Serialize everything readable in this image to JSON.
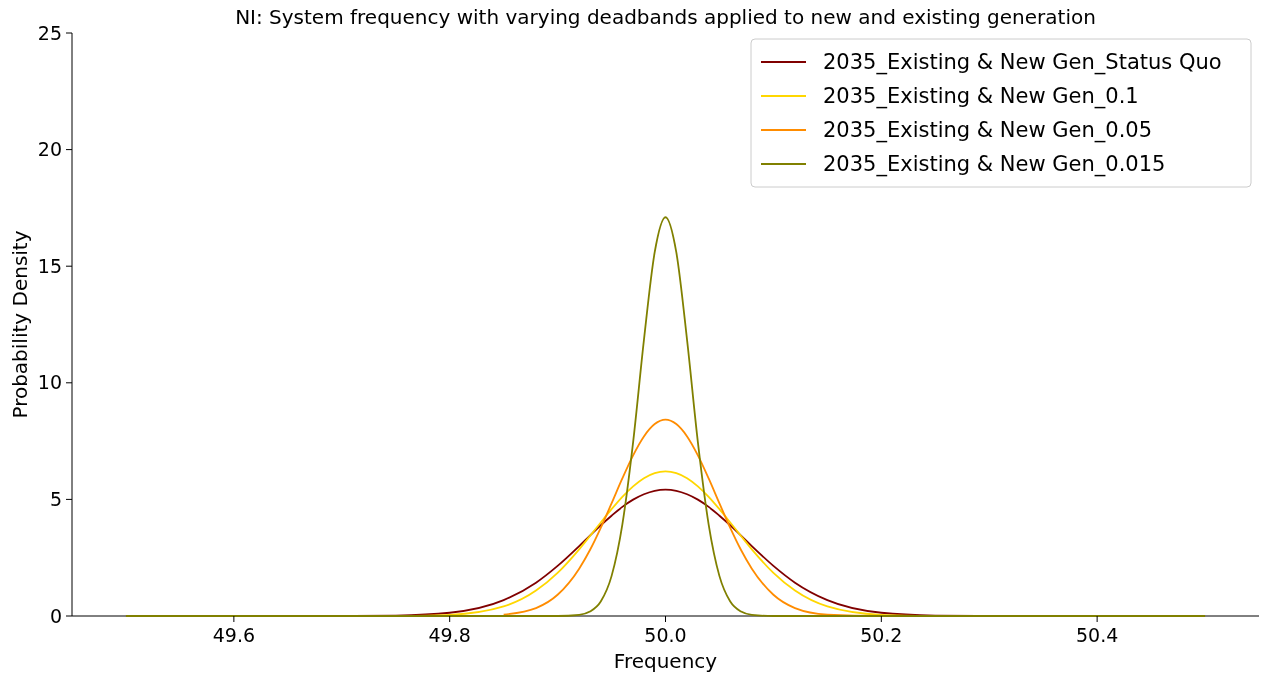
{
  "chart_data": {
    "type": "line",
    "title": "NI: System frequency with varying deadbands applied to new and existing generation",
    "xlabel": "Frequency",
    "ylabel": "Probability Density",
    "x": [
      49.5,
      49.7,
      49.75,
      49.8,
      49.85,
      49.88,
      49.9,
      49.92,
      49.93,
      49.94,
      49.95,
      49.96,
      49.97,
      49.98,
      49.99,
      50.0,
      50.01,
      50.02,
      50.03,
      50.04,
      50.05,
      50.06,
      50.07,
      50.08,
      50.1,
      50.12,
      50.15,
      50.2,
      50.25,
      50.3,
      50.5
    ],
    "series": [
      {
        "name": "2035_Existing & New Gen_Status Quo",
        "color": "#800000",
        "values": [
          0,
          0,
          0.02,
          0.14,
          0.68,
          1.43,
          2.15,
          3.0,
          3.45,
          3.89,
          4.3,
          4.68,
          4.99,
          5.22,
          5.37,
          5.42,
          5.37,
          5.22,
          4.99,
          4.68,
          4.3,
          3.89,
          3.45,
          3.0,
          2.15,
          1.43,
          0.68,
          0.14,
          0.02,
          0,
          0
        ]
      },
      {
        "name": "2035_Existing & New Gen_0.1",
        "color": "#ffd700",
        "values": [
          null,
          null,
          0,
          0.05,
          0.41,
          1.09,
          1.85,
          2.86,
          3.43,
          4.01,
          4.58,
          5.11,
          5.56,
          5.91,
          6.13,
          6.2,
          6.13,
          5.91,
          5.56,
          5.11,
          4.58,
          4.01,
          3.43,
          2.86,
          1.85,
          1.09,
          0.41,
          0.05,
          0,
          null,
          null
        ]
      },
      {
        "name": "2035_Existing & New Gen_0.05",
        "color": "#ff8c00",
        "values": [
          null,
          null,
          null,
          null,
          0.06,
          0.34,
          0.91,
          2.03,
          2.83,
          3.78,
          4.83,
          5.9,
          6.89,
          7.7,
          8.23,
          8.42,
          8.23,
          7.7,
          6.89,
          5.9,
          4.83,
          3.78,
          2.83,
          2.03,
          0.91,
          0.34,
          0.06,
          0,
          0,
          null,
          null
        ]
      },
      {
        "name": "2035_Existing & New Gen_0.015",
        "color": "#808000",
        "values": [
          0,
          0,
          0,
          0,
          0,
          0,
          0,
          0.05,
          0.19,
          0.62,
          1.71,
          3.92,
          7.46,
          11.83,
          15.6,
          17.1,
          15.6,
          11.83,
          7.46,
          3.92,
          1.71,
          0.62,
          0.19,
          0.05,
          0,
          0,
          0,
          0,
          0,
          0,
          0
        ]
      }
    ],
    "xlim": [
      49.45,
      50.55
    ],
    "xticks": [
      {
        "value": 49.6,
        "label": "49.6"
      },
      {
        "value": 49.8,
        "label": "49.8"
      },
      {
        "value": 50.0,
        "label": "50.0"
      },
      {
        "value": 50.2,
        "label": "50.2"
      },
      {
        "value": 50.4,
        "label": "50.4"
      }
    ],
    "ylim": [
      0,
      25
    ],
    "yticks": [
      0,
      5,
      10,
      15,
      20,
      25
    ],
    "legend": "top right",
    "grid": false
  }
}
